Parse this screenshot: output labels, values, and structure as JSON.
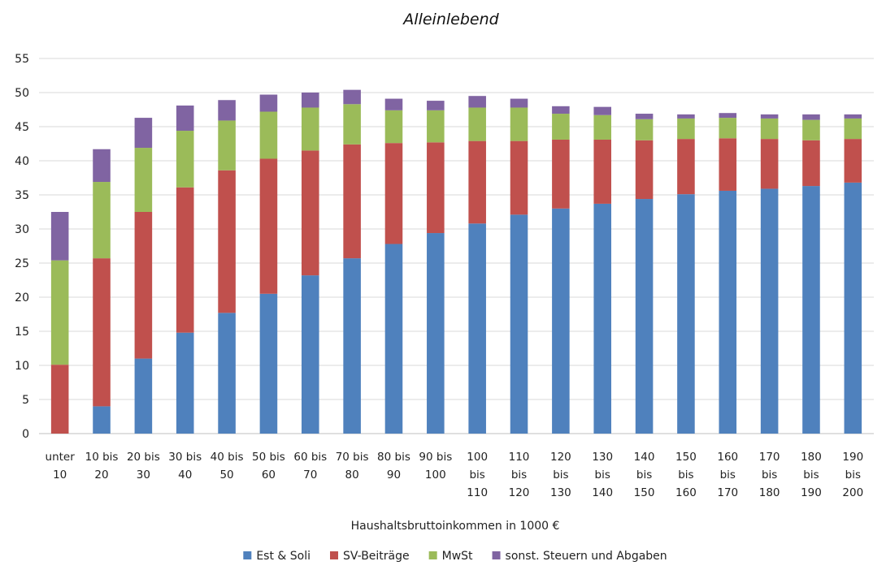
{
  "chart_data": {
    "type": "bar",
    "stacked": true,
    "title": "Alleinlebend",
    "xlabel": "Haushaltsbruttoinkommen in 1000 €",
    "ylabel": "",
    "ylim": [
      0,
      55
    ],
    "yticks": [
      0,
      5,
      10,
      15,
      20,
      25,
      30,
      35,
      40,
      45,
      50,
      55
    ],
    "grid": true,
    "legend_position": "bottom",
    "categories": [
      [
        "unter",
        "10"
      ],
      [
        "10 bis",
        "20"
      ],
      [
        "20 bis",
        "30"
      ],
      [
        "30 bis",
        "40"
      ],
      [
        "40 bis",
        "50"
      ],
      [
        "50 bis",
        "60"
      ],
      [
        "60 bis",
        "70"
      ],
      [
        "70 bis",
        "80"
      ],
      [
        "80 bis",
        "90"
      ],
      [
        "90 bis",
        "100"
      ],
      [
        "100",
        "bis",
        "110"
      ],
      [
        "110",
        "bis",
        "120"
      ],
      [
        "120",
        "bis",
        "130"
      ],
      [
        "130",
        "bis",
        "140"
      ],
      [
        "140",
        "bis",
        "150"
      ],
      [
        "150",
        "bis",
        "160"
      ],
      [
        "160",
        "bis",
        "170"
      ],
      [
        "170",
        "bis",
        "180"
      ],
      [
        "180",
        "bis",
        "190"
      ],
      [
        "190",
        "bis",
        "200"
      ]
    ],
    "series": [
      {
        "name": "Est & Soli",
        "color": "#4f81bd",
        "values": [
          0,
          4.0,
          11.0,
          14.8,
          17.7,
          20.5,
          23.2,
          25.7,
          27.8,
          29.4,
          30.8,
          32.1,
          33.0,
          33.7,
          34.4,
          35.1,
          35.6,
          35.9,
          36.3,
          36.8
        ]
      },
      {
        "name": "SV-Beiträge",
        "color": "#c0504d",
        "values": [
          10.1,
          21.7,
          21.5,
          21.3,
          20.9,
          19.8,
          18.3,
          16.7,
          14.8,
          13.3,
          12.1,
          10.8,
          10.1,
          9.4,
          8.6,
          8.1,
          7.7,
          7.3,
          6.7,
          6.4
        ]
      },
      {
        "name": "MwSt",
        "color": "#9bbb59",
        "values": [
          15.3,
          11.2,
          9.4,
          8.3,
          7.3,
          6.9,
          6.3,
          5.9,
          4.8,
          4.7,
          4.9,
          4.9,
          3.8,
          3.6,
          3.1,
          3.0,
          3.0,
          3.0,
          3.0,
          3.0
        ]
      },
      {
        "name": "sonst. Steuern und Abgaben",
        "color": "#8064a2",
        "values": [
          7.1,
          4.8,
          4.4,
          3.7,
          3.0,
          2.5,
          2.2,
          2.1,
          1.7,
          1.4,
          1.7,
          1.3,
          1.1,
          1.2,
          0.8,
          0.6,
          0.7,
          0.6,
          0.8,
          0.6
        ]
      }
    ]
  }
}
